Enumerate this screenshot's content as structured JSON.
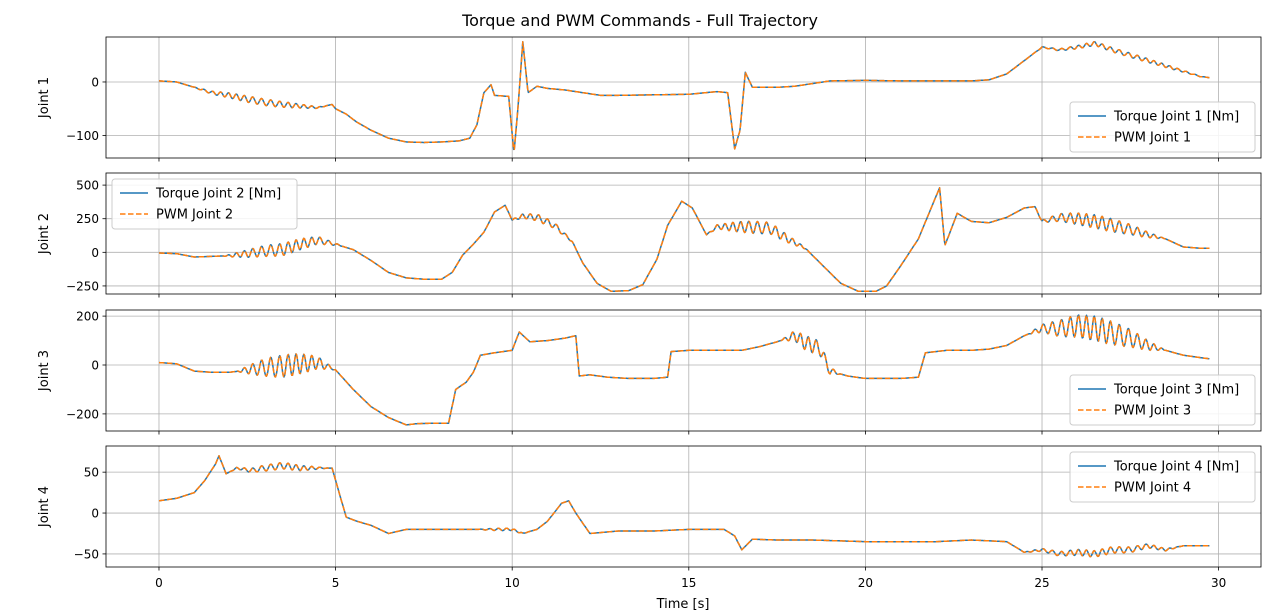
{
  "chart_data": {
    "type": "line",
    "title": "Torque and PWM Commands - Full Trajectory",
    "xlabel": "Time [s]",
    "xlim": [
      -1.5,
      31.2
    ],
    "xticks": [
      0,
      5,
      10,
      15,
      20,
      25,
      30
    ],
    "grid": true,
    "colors": {
      "torque": "#1f77b4",
      "pwm": "#ff7f0e"
    },
    "subplots": [
      {
        "ylabel": "Joint 1",
        "ylim": [
          -142,
          84
        ],
        "yticks": [
          0,
          -100
        ],
        "ytick_labels": [
          "0",
          "−100"
        ],
        "legend_position": "lower-right",
        "series": [
          {
            "name": "Torque Joint 1 [Nm]",
            "style": "solid",
            "color_key": "torque"
          },
          {
            "name": "PWM Joint 1",
            "style": "dashed",
            "color_key": "pwm"
          }
        ],
        "points": [
          [
            0,
            2
          ],
          [
            0.5,
            0
          ],
          [
            1,
            -10
          ],
          [
            1.5,
            -20
          ],
          [
            2,
            -25
          ],
          [
            2.5,
            -32
          ],
          [
            3,
            -38
          ],
          [
            3.5,
            -42
          ],
          [
            4,
            -45
          ],
          [
            4.5,
            -48
          ],
          [
            4.9,
            -42
          ],
          [
            5,
            -50
          ],
          [
            5.3,
            -60
          ],
          [
            5.6,
            -75
          ],
          [
            6,
            -90
          ],
          [
            6.5,
            -105
          ],
          [
            7,
            -112
          ],
          [
            7.5,
            -113
          ],
          [
            8,
            -112
          ],
          [
            8.5,
            -110
          ],
          [
            8.8,
            -105
          ],
          [
            9.0,
            -80
          ],
          [
            9.2,
            -20
          ],
          [
            9.4,
            -5
          ],
          [
            9.5,
            -25
          ],
          [
            9.9,
            -27
          ],
          [
            10.05,
            -133
          ],
          [
            10.15,
            -60
          ],
          [
            10.3,
            75
          ],
          [
            10.45,
            -20
          ],
          [
            10.7,
            -8
          ],
          [
            11,
            -12
          ],
          [
            11.5,
            -15
          ],
          [
            12,
            -20
          ],
          [
            12.5,
            -25
          ],
          [
            13,
            -25
          ],
          [
            14,
            -24
          ],
          [
            15,
            -23
          ],
          [
            15.8,
            -18
          ],
          [
            16.1,
            -20
          ],
          [
            16.3,
            -125
          ],
          [
            16.45,
            -90
          ],
          [
            16.6,
            18
          ],
          [
            16.8,
            -10
          ],
          [
            17.5,
            -10
          ],
          [
            18,
            -8
          ],
          [
            18.5,
            -3
          ],
          [
            19,
            2
          ],
          [
            20,
            3
          ],
          [
            21,
            2
          ],
          [
            22,
            2
          ],
          [
            23,
            2
          ],
          [
            23.5,
            4
          ],
          [
            24,
            15
          ],
          [
            24.5,
            40
          ],
          [
            25,
            65
          ],
          [
            25.5,
            60
          ],
          [
            26,
            65
          ],
          [
            26.5,
            72
          ],
          [
            27,
            60
          ],
          [
            27.5,
            50
          ],
          [
            28,
            40
          ],
          [
            28.5,
            30
          ],
          [
            29,
            20
          ],
          [
            29.5,
            10
          ],
          [
            29.75,
            8
          ]
        ],
        "ripples": [
          [
            0.9,
            4.8,
            6
          ],
          [
            24.7,
            29.7,
            4
          ]
        ]
      },
      {
        "ylabel": "Joint 2",
        "ylim": [
          -310,
          590
        ],
        "yticks": [
          500,
          250,
          0,
          -250
        ],
        "ytick_labels": [
          "500",
          "250",
          "0",
          "−250"
        ],
        "legend_position": "upper-left",
        "series": [
          {
            "name": "Torque Joint 2 [Nm]",
            "style": "solid",
            "color_key": "torque"
          },
          {
            "name": "PWM Joint 2",
            "style": "dashed",
            "color_key": "pwm"
          }
        ],
        "points": [
          [
            0,
            -5
          ],
          [
            0.5,
            -10
          ],
          [
            1,
            -35
          ],
          [
            1.5,
            -30
          ],
          [
            2,
            -25
          ],
          [
            2.5,
            -10
          ],
          [
            3,
            10
          ],
          [
            3.5,
            20
          ],
          [
            4,
            60
          ],
          [
            4.5,
            90
          ],
          [
            5,
            60
          ],
          [
            5.5,
            20
          ],
          [
            6,
            -60
          ],
          [
            6.5,
            -150
          ],
          [
            7,
            -190
          ],
          [
            7.5,
            -200
          ],
          [
            8,
            -200
          ],
          [
            8.3,
            -150
          ],
          [
            8.6,
            -20
          ],
          [
            8.9,
            60
          ],
          [
            9.2,
            150
          ],
          [
            9.5,
            300
          ],
          [
            9.8,
            350
          ],
          [
            10,
            240
          ],
          [
            10.3,
            270
          ],
          [
            10.7,
            260
          ],
          [
            11.2,
            200
          ],
          [
            11.7,
            80
          ],
          [
            12,
            -80
          ],
          [
            12.4,
            -230
          ],
          [
            12.8,
            -290
          ],
          [
            13.3,
            -285
          ],
          [
            13.7,
            -240
          ],
          [
            14.1,
            -50
          ],
          [
            14.4,
            200
          ],
          [
            14.8,
            380
          ],
          [
            15.1,
            330
          ],
          [
            15.5,
            130
          ],
          [
            15.8,
            190
          ],
          [
            16.5,
            190
          ],
          [
            17.3,
            180
          ],
          [
            17.8,
            100
          ],
          [
            18.3,
            30
          ],
          [
            18.8,
            -100
          ],
          [
            19.3,
            -230
          ],
          [
            19.8,
            -290
          ],
          [
            20.3,
            -290
          ],
          [
            20.6,
            -250
          ],
          [
            21,
            -100
          ],
          [
            21.5,
            100
          ],
          [
            22.1,
            480
          ],
          [
            22.25,
            50
          ],
          [
            22.6,
            290
          ],
          [
            23,
            230
          ],
          [
            23.5,
            220
          ],
          [
            24,
            260
          ],
          [
            24.5,
            330
          ],
          [
            24.8,
            340
          ],
          [
            25,
            230
          ],
          [
            25.5,
            260
          ],
          [
            26,
            250
          ],
          [
            26.5,
            230
          ],
          [
            27,
            200
          ],
          [
            27.5,
            170
          ],
          [
            28,
            130
          ],
          [
            28.5,
            100
          ],
          [
            29,
            40
          ],
          [
            29.5,
            30
          ],
          [
            29.75,
            30
          ]
        ],
        "ripples": [
          [
            1.8,
            5.2,
            45
          ],
          [
            9.9,
            11.8,
            25
          ],
          [
            15.5,
            18.4,
            45
          ],
          [
            24.8,
            28.5,
            50
          ]
        ]
      },
      {
        "ylabel": "Joint 3",
        "ylim": [
          -270,
          225
        ],
        "yticks": [
          200,
          0,
          -200
        ],
        "ytick_labels": [
          "200",
          "0",
          "−200"
        ],
        "legend_position": "lower-right",
        "series": [
          {
            "name": "Torque Joint 3 [Nm]",
            "style": "solid",
            "color_key": "torque"
          },
          {
            "name": "PWM Joint 3",
            "style": "dashed",
            "color_key": "pwm"
          }
        ],
        "points": [
          [
            0,
            10
          ],
          [
            0.5,
            5
          ],
          [
            1,
            -25
          ],
          [
            1.5,
            -30
          ],
          [
            2,
            -30
          ],
          [
            2.5,
            -20
          ],
          [
            3,
            -10
          ],
          [
            3.5,
            -5
          ],
          [
            4,
            5
          ],
          [
            4.5,
            10
          ],
          [
            5,
            -20
          ],
          [
            5.5,
            -100
          ],
          [
            6,
            -170
          ],
          [
            6.5,
            -215
          ],
          [
            7,
            -245
          ],
          [
            7.3,
            -240
          ],
          [
            7.8,
            -238
          ],
          [
            8.2,
            -238
          ],
          [
            8.4,
            -100
          ],
          [
            8.7,
            -70
          ],
          [
            8.9,
            -30
          ],
          [
            9.1,
            40
          ],
          [
            9.5,
            50
          ],
          [
            10,
            60
          ],
          [
            10.2,
            135
          ],
          [
            10.5,
            95
          ],
          [
            11,
            100
          ],
          [
            11.5,
            110
          ],
          [
            11.8,
            120
          ],
          [
            11.9,
            -45
          ],
          [
            12.2,
            -40
          ],
          [
            12.7,
            -50
          ],
          [
            13.3,
            -55
          ],
          [
            14,
            -55
          ],
          [
            14.4,
            -50
          ],
          [
            14.5,
            55
          ],
          [
            15,
            60
          ],
          [
            16,
            60
          ],
          [
            16.5,
            60
          ],
          [
            17,
            75
          ],
          [
            17.5,
            95
          ],
          [
            18,
            120
          ],
          [
            18.3,
            90
          ],
          [
            18.7,
            70
          ],
          [
            19,
            -25
          ],
          [
            19.5,
            -45
          ],
          [
            20,
            -55
          ],
          [
            21,
            -55
          ],
          [
            21.5,
            -50
          ],
          [
            21.7,
            50
          ],
          [
            22.3,
            60
          ],
          [
            23,
            60
          ],
          [
            23.5,
            65
          ],
          [
            24,
            80
          ],
          [
            24.5,
            120
          ],
          [
            25,
            150
          ],
          [
            25.5,
            150
          ],
          [
            26,
            160
          ],
          [
            26.5,
            150
          ],
          [
            27,
            130
          ],
          [
            27.5,
            110
          ],
          [
            28,
            80
          ],
          [
            28.5,
            60
          ],
          [
            29,
            40
          ],
          [
            29.5,
            30
          ],
          [
            29.75,
            25
          ]
        ],
        "ripples": [
          [
            2.2,
            5.0,
            45
          ],
          [
            17.6,
            19.3,
            30
          ],
          [
            24.6,
            28.5,
            50
          ]
        ]
      },
      {
        "ylabel": "Joint 4",
        "ylim": [
          -66,
          82
        ],
        "yticks": [
          50,
          0,
          -50
        ],
        "ytick_labels": [
          "50",
          "0",
          "−50"
        ],
        "legend_position": "upper-right",
        "series": [
          {
            "name": "Torque Joint 4 [Nm]",
            "style": "solid",
            "color_key": "torque"
          },
          {
            "name": "PWM Joint 4",
            "style": "dashed",
            "color_key": "pwm"
          }
        ],
        "points": [
          [
            0,
            15
          ],
          [
            0.5,
            18
          ],
          [
            1,
            25
          ],
          [
            1.3,
            40
          ],
          [
            1.6,
            60
          ],
          [
            1.7,
            70
          ],
          [
            1.9,
            48
          ],
          [
            2.2,
            55
          ],
          [
            2.6,
            52
          ],
          [
            3,
            55
          ],
          [
            3.5,
            58
          ],
          [
            4,
            55
          ],
          [
            4.5,
            55
          ],
          [
            4.9,
            55
          ],
          [
            5,
            40
          ],
          [
            5.3,
            -5
          ],
          [
            5.6,
            -10
          ],
          [
            6,
            -15
          ],
          [
            6.5,
            -25
          ],
          [
            7,
            -20
          ],
          [
            8,
            -20
          ],
          [
            9,
            -20
          ],
          [
            10,
            -20
          ],
          [
            10.3,
            -25
          ],
          [
            10.7,
            -20
          ],
          [
            11,
            -10
          ],
          [
            11.4,
            12
          ],
          [
            11.6,
            15
          ],
          [
            11.8,
            0
          ],
          [
            12.2,
            -25
          ],
          [
            13,
            -22
          ],
          [
            14,
            -22
          ],
          [
            15,
            -20
          ],
          [
            16,
            -20
          ],
          [
            16.3,
            -28
          ],
          [
            16.5,
            -45
          ],
          [
            16.8,
            -32
          ],
          [
            17.5,
            -33
          ],
          [
            18.5,
            -33
          ],
          [
            20,
            -35
          ],
          [
            22,
            -35
          ],
          [
            23,
            -33
          ],
          [
            24,
            -35
          ],
          [
            24.5,
            -48
          ],
          [
            25,
            -45
          ],
          [
            25.5,
            -50
          ],
          [
            26,
            -48
          ],
          [
            26.5,
            -50
          ],
          [
            27,
            -45
          ],
          [
            27.5,
            -45
          ],
          [
            28,
            -40
          ],
          [
            28.5,
            -45
          ],
          [
            29,
            -40
          ],
          [
            29.5,
            -40
          ],
          [
            29.75,
            -40
          ]
        ],
        "ripples": [
          [
            2.0,
            4.8,
            4
          ],
          [
            9.0,
            10.5,
            1.5
          ],
          [
            24.4,
            29.0,
            4
          ]
        ]
      }
    ]
  }
}
